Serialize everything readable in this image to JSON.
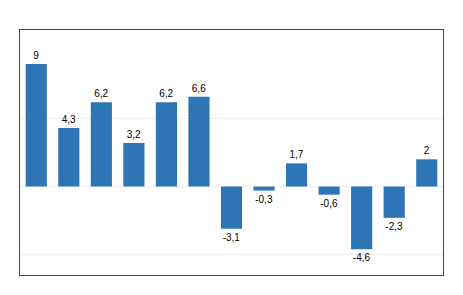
{
  "chart_data": {
    "type": "bar",
    "categories": [
      null,
      null,
      null,
      null,
      null,
      null,
      null,
      null,
      null,
      null,
      null,
      null,
      null
    ],
    "values": [
      9,
      4.3,
      6.2,
      3.2,
      6.2,
      6.6,
      -3.1,
      -0.3,
      1.7,
      -0.6,
      -4.6,
      -2.3,
      2
    ],
    "value_labels": [
      "9",
      "4,3",
      "6,2",
      "3,2",
      "6,2",
      "6,6",
      "-3,1",
      "-0,3",
      "1,7",
      "-0,6",
      "-4,6",
      "-2,3",
      "2"
    ],
    "color": "#2E75B6",
    "ylim": [
      -6.5,
      11.5
    ],
    "yticks": [
      -5,
      0,
      5
    ],
    "grid": true,
    "data_labels": true,
    "tick_labels": false
  }
}
